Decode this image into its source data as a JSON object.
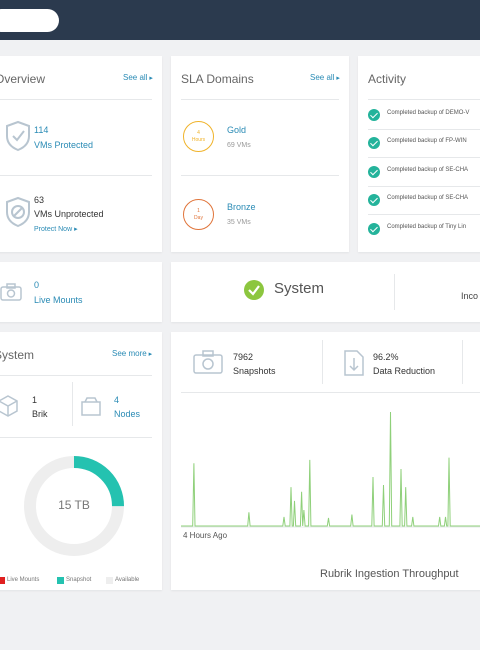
{
  "colors": {
    "topbar": "#2b3a4e",
    "accent": "#2a8bb5",
    "success": "#24b39b",
    "gold": "#f0b32a",
    "bronze": "#e0743a",
    "live_mounts": "#e02020",
    "snapshot": "#24c2b0",
    "available": "#eeeeee",
    "chart_line": "#8fd07a"
  },
  "overview": {
    "title": "Overview",
    "see_all": "See all",
    "protected_count": "114",
    "protected_label": "VMs Protected",
    "unprotected_count": "63",
    "unprotected_label": "VMs Unprotected",
    "protect_now": "Protect Now",
    "icons": [
      "shield-check-icon",
      "shield-slash-icon"
    ]
  },
  "sla": {
    "title": "SLA Domains",
    "see_all": "See all",
    "domains": [
      {
        "ring_top": "4",
        "ring_bottom": "Hours",
        "name": "Gold",
        "count": "69 VMs",
        "color_key": "gold"
      },
      {
        "ring_top": "1",
        "ring_bottom": "Day",
        "name": "Bronze",
        "count": "35 VMs",
        "color_key": "bronze"
      }
    ]
  },
  "activity": {
    "title": "Activity",
    "items": [
      "Completed backup of DEMO-V",
      "Completed backup of FP-WIN",
      "Completed backup of SE-CHA",
      "Completed backup of SE-CHA",
      "Completed backup of Tiny Lin"
    ]
  },
  "live_mounts": {
    "count": "0",
    "label": "Live Mounts",
    "icon": "camera-icon"
  },
  "system_status": {
    "label": "System",
    "right_text": "Inco",
    "icon": "check-circle-icon"
  },
  "system": {
    "title": "System",
    "see_more": "See more",
    "brik_count": "1",
    "brik_label": "Brik",
    "nodes_count": "4",
    "nodes_label": "Nodes",
    "capacity": "15 TB",
    "snapshot_fraction": 0.25,
    "legend": [
      "Live Mounts",
      "Snapshot",
      "Available"
    ]
  },
  "throughput": {
    "snapshots_count": "7962",
    "snapshots_label": "Snapshots",
    "reduction_value": "96.2%",
    "reduction_label": "Data Reduction",
    "time_label": "4 Hours Ago",
    "chart_title": "Rubrik Ingestion Throughput"
  },
  "chart_data": {
    "type": "line",
    "title": "Rubrik Ingestion Throughput",
    "xlabel": "4 Hours Ago",
    "ylabel": "",
    "series": [
      {
        "values": [
          0,
          0,
          0,
          0,
          0,
          0,
          0,
          0,
          0,
          0,
          0,
          0.55,
          0,
          0,
          0,
          0,
          0,
          0,
          0,
          0,
          0,
          0,
          0,
          0,
          0,
          0,
          0,
          0,
          0,
          0,
          0,
          0,
          0,
          0,
          0,
          0,
          0,
          0,
          0,
          0,
          0,
          0,
          0,
          0,
          0,
          0,
          0,
          0,
          0,
          0,
          0,
          0,
          0,
          0,
          0,
          0,
          0,
          0,
          0.12,
          0,
          0,
          0,
          0,
          0,
          0,
          0,
          0,
          0,
          0,
          0,
          0,
          0,
          0,
          0,
          0,
          0,
          0,
          0,
          0,
          0,
          0,
          0,
          0,
          0,
          0,
          0,
          0,
          0,
          0.08,
          0,
          0,
          0,
          0,
          0,
          0.34,
          0,
          0,
          0.22,
          0,
          0,
          0,
          0,
          0,
          0.3,
          0,
          0.14,
          0,
          0,
          0,
          0,
          0.58,
          0,
          0,
          0,
          0,
          0,
          0,
          0,
          0,
          0,
          0,
          0,
          0,
          0,
          0,
          0,
          0.07,
          0,
          0,
          0,
          0,
          0,
          0,
          0,
          0,
          0,
          0,
          0,
          0,
          0,
          0,
          0,
          0,
          0,
          0,
          0,
          0.1,
          0,
          0,
          0,
          0,
          0,
          0,
          0,
          0,
          0,
          0,
          0,
          0,
          0,
          0,
          0,
          0,
          0,
          0.43,
          0,
          0,
          0,
          0,
          0,
          0,
          0,
          0,
          0.36,
          0,
          0,
          0,
          0,
          0,
          1.0,
          0,
          0,
          0,
          0,
          0,
          0,
          0,
          0,
          0.5,
          0,
          0,
          0,
          0.34,
          0,
          0,
          0,
          0,
          0,
          0.08,
          0,
          0,
          0,
          0,
          0,
          0,
          0,
          0,
          0,
          0,
          0,
          0,
          0,
          0,
          0,
          0,
          0,
          0,
          0,
          0,
          0,
          0,
          0.08,
          0,
          0,
          0,
          0,
          0.08,
          0,
          0,
          0.6,
          0,
          0,
          0,
          0,
          0,
          0,
          0,
          0,
          0,
          0,
          0,
          0,
          0,
          0,
          0,
          0,
          0,
          0,
          0,
          0,
          0,
          0,
          0,
          0,
          0,
          0,
          0,
          0,
          0,
          0,
          0,
          0,
          0,
          0,
          0
        ]
      }
    ]
  }
}
